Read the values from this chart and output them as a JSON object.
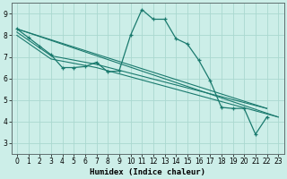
{
  "xlabel": "Humidex (Indice chaleur)",
  "bg_color": "#cceee8",
  "grid_color": "#aad8d0",
  "line_color": "#1a7a6e",
  "xlim": [
    -0.5,
    23.5
  ],
  "ylim": [
    2.5,
    9.5
  ],
  "xticks": [
    0,
    1,
    2,
    3,
    4,
    5,
    6,
    7,
    8,
    9,
    10,
    11,
    12,
    13,
    14,
    15,
    16,
    17,
    18,
    19,
    20,
    21,
    22,
    23
  ],
  "yticks": [
    3,
    4,
    5,
    6,
    7,
    8,
    9
  ],
  "line1_x": [
    0,
    1,
    2,
    3,
    4,
    5,
    6,
    7,
    8,
    9,
    10,
    11,
    12,
    13,
    14,
    15,
    16,
    17,
    18,
    19,
    20,
    21,
    22
  ],
  "line1_y": [
    8.3,
    7.9,
    7.5,
    7.1,
    6.5,
    6.5,
    6.55,
    6.75,
    6.3,
    6.35,
    8.0,
    9.2,
    8.75,
    8.75,
    7.85,
    7.6,
    6.85,
    5.9,
    4.65,
    4.6,
    4.6,
    3.4,
    4.2
  ],
  "line2_x": [
    0,
    22
  ],
  "line2_y": [
    8.3,
    4.6
  ],
  "line3_x": [
    0,
    23
  ],
  "line3_y": [
    8.3,
    4.2
  ],
  "line4_x": [
    0,
    3,
    7,
    22
  ],
  "line4_y": [
    8.15,
    7.05,
    6.65,
    4.6
  ],
  "line5_x": [
    0,
    3,
    7,
    23
  ],
  "line5_y": [
    8.0,
    6.9,
    6.5,
    4.2
  ]
}
